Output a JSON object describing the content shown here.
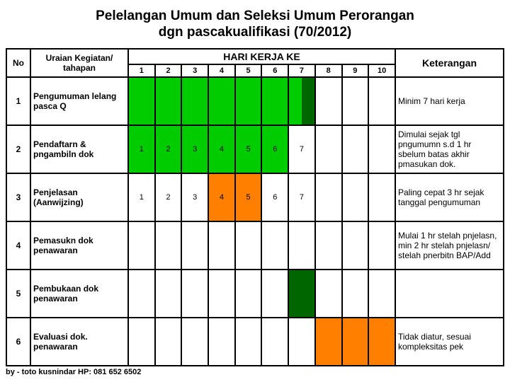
{
  "title_line1": "Pelelangan Umum dan Seleksi Umum Perorangan",
  "title_line2": "dgn pascakualifikasi (70/2012)",
  "headers": {
    "no": "No",
    "uraian": "Uraian Kegiatan/ tahapan",
    "hari": "HARI KERJA  KE",
    "ket": "Keterangan",
    "days": [
      "1",
      "2",
      "3",
      "4",
      "5",
      "6",
      "7",
      "8",
      "9",
      "10"
    ]
  },
  "colors": {
    "green": "#00cc00",
    "darkgreen": "#006600",
    "orange": "#ff8000",
    "white": "#ffffff"
  },
  "rows": [
    {
      "no": "1",
      "uraian": "Pengumuman lelang pasca Q",
      "ket": "Minim 7 hari kerja",
      "cells": [
        {
          "bg": "#00cc00"
        },
        {
          "bg": "#00cc00"
        },
        {
          "bg": "#00cc00"
        },
        {
          "bg": "#00cc00"
        },
        {
          "bg": "#00cc00"
        },
        {
          "bg": "#00cc00"
        },
        {
          "split": true,
          "left": "#00cc00",
          "right": "#006600"
        },
        {
          "bg": "#ffffff"
        },
        {
          "bg": "#ffffff"
        },
        {
          "bg": "#ffffff"
        }
      ]
    },
    {
      "no": "2",
      "uraian": "Pendaftarn & pngambiln dok",
      "ket": "Dimulai sejak tgl pngumumn s.d 1 hr sbelum batas akhir pmasukan dok.",
      "cells": [
        {
          "bg": "#00cc00",
          "t": "1"
        },
        {
          "bg": "#00cc00",
          "t": "2"
        },
        {
          "bg": "#00cc00",
          "t": "3"
        },
        {
          "bg": "#00cc00",
          "t": "4"
        },
        {
          "bg": "#00cc00",
          "t": "5"
        },
        {
          "bg": "#00cc00",
          "t": "6"
        },
        {
          "bg": "#ffffff",
          "t": "7"
        },
        {
          "bg": "#ffffff"
        },
        {
          "bg": "#ffffff"
        },
        {
          "bg": "#ffffff"
        }
      ]
    },
    {
      "no": "3",
      "uraian": "Penjelasan (Aanwijzing)",
      "ket": "Paling cepat 3 hr sejak tanggal pengumuman",
      "cells": [
        {
          "bg": "#ffffff",
          "t": "1"
        },
        {
          "bg": "#ffffff",
          "t": "2"
        },
        {
          "bg": "#ffffff",
          "t": "3"
        },
        {
          "bg": "#ff8000",
          "t": "4"
        },
        {
          "bg": "#ff8000",
          "t": "5"
        },
        {
          "bg": "#ffffff",
          "t": "6"
        },
        {
          "bg": "#ffffff",
          "t": "7"
        },
        {
          "bg": "#ffffff"
        },
        {
          "bg": "#ffffff"
        },
        {
          "bg": "#ffffff"
        }
      ]
    },
    {
      "no": "4",
      "uraian": "Pemasukn dok penawaran",
      "ket": "Mulai 1 hr stelah pnjelasn, min 2 hr stelah pnjelasn/ stelah pnerbitn BAP/Add",
      "cells": [
        {
          "bg": "#ffffff"
        },
        {
          "bg": "#ffffff"
        },
        {
          "bg": "#ffffff"
        },
        {
          "bg": "#ffffff"
        },
        {
          "bg": "#ffffff"
        },
        {
          "bg": "#ffffff"
        },
        {
          "bg": "#ffffff"
        },
        {
          "bg": "#ffffff"
        },
        {
          "bg": "#ffffff"
        },
        {
          "bg": "#ffffff"
        }
      ]
    },
    {
      "no": "5",
      "uraian": "Pembukaan dok penawaran",
      "ket": "",
      "cells": [
        {
          "bg": "#ffffff"
        },
        {
          "bg": "#ffffff"
        },
        {
          "bg": "#ffffff"
        },
        {
          "bg": "#ffffff"
        },
        {
          "bg": "#ffffff"
        },
        {
          "bg": "#ffffff"
        },
        {
          "bg": "#006600"
        },
        {
          "bg": "#ffffff"
        },
        {
          "bg": "#ffffff"
        },
        {
          "bg": "#ffffff"
        }
      ]
    },
    {
      "no": "6",
      "uraian": "Evaluasi dok. penawaran",
      "ket": "Tidak diatur, sesuai kompleksitas pek",
      "cells": [
        {
          "bg": "#ffffff"
        },
        {
          "bg": "#ffffff"
        },
        {
          "bg": "#ffffff"
        },
        {
          "bg": "#ffffff"
        },
        {
          "bg": "#ffffff"
        },
        {
          "bg": "#ffffff"
        },
        {
          "bg": "#ffffff"
        },
        {
          "bg": "#ff8000"
        },
        {
          "bg": "#ff8000"
        },
        {
          "bg": "#ff8000"
        }
      ]
    }
  ],
  "footer": "by - toto kusnindar HP: 081 652 6502"
}
